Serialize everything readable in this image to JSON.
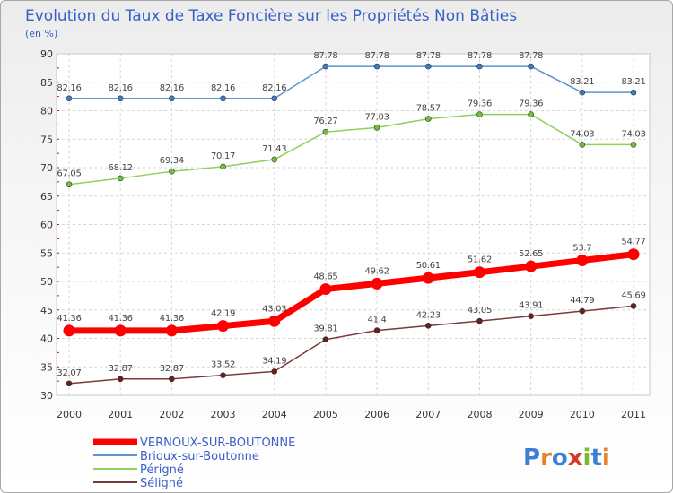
{
  "title": "Evolution du Taux de Taxe Foncière sur les Propriétés Non Bâties",
  "subtitle": "(en %)",
  "logo": {
    "letters": [
      "P",
      "r",
      "o",
      "x",
      "i",
      "t",
      "i"
    ],
    "colors": [
      "#3d7fd4",
      "#e8822a",
      "#3d7fd4",
      "#d9362b",
      "#7cb92f",
      "#3d7fd4",
      "#e8822a"
    ]
  },
  "chart_data": {
    "type": "line",
    "title": "Evolution du Taux de Taxe Foncière sur les Propriétés Non Bâties",
    "ylabel": "(en %)",
    "x": [
      "2000",
      "2001",
      "2002",
      "2003",
      "2004",
      "2005",
      "2006",
      "2007",
      "2008",
      "2009",
      "2010",
      "2011"
    ],
    "ylim": [
      30,
      90
    ],
    "yticks": [
      "30",
      "35",
      "40",
      "45",
      "50",
      "55",
      "60",
      "65",
      "70",
      "75",
      "80",
      "85",
      "90"
    ],
    "grid": true,
    "legend_position": "bottom-left",
    "series": [
      {
        "name": "VERNOUX-SUR-BOUTONNE",
        "color": "#ff0000",
        "marker_color": "#ff0000",
        "emphasis": "thick",
        "values": [
          41.36,
          41.36,
          41.36,
          42.19,
          43.03,
          48.65,
          49.62,
          50.61,
          51.62,
          52.65,
          53.7,
          54.77
        ],
        "labels": [
          "41.36",
          "41.36",
          "41.36",
          "42.19",
          "43.03",
          "48.65",
          "49.62",
          "50.61",
          "51.62",
          "52.65",
          "53.7",
          "54.77"
        ]
      },
      {
        "name": "Brioux-sur-Boutonne",
        "color": "#5b94cf",
        "marker_color": "#3d7cc4",
        "values": [
          82.16,
          82.16,
          82.16,
          82.16,
          82.16,
          87.78,
          87.78,
          87.78,
          87.78,
          87.78,
          83.21,
          83.21
        ],
        "labels": [
          "82.16",
          "82.16",
          "82.16",
          "82.16",
          "82.16",
          "87.78",
          "87.78",
          "87.78",
          "87.78",
          "87.78",
          "83.21",
          "83.21"
        ]
      },
      {
        "name": "Périgné",
        "color": "#8ed05a",
        "marker_color": "#72c03a",
        "values": [
          67.05,
          68.12,
          69.34,
          70.17,
          71.43,
          76.27,
          77.03,
          78.57,
          79.36,
          79.36,
          74.03,
          74.03
        ],
        "labels": [
          "67.05",
          "68.12",
          "69.34",
          "70.17",
          "71.43",
          "76.27",
          "77.03",
          "78.57",
          "79.36",
          "79.36",
          "74.03",
          "74.03"
        ]
      },
      {
        "name": "Séligné",
        "color": "#7a3a3a",
        "marker_color": "#6a1f1f",
        "values": [
          32.07,
          32.87,
          32.87,
          33.52,
          34.19,
          39.81,
          41.4,
          42.23,
          43.05,
          43.91,
          44.79,
          45.69
        ],
        "labels": [
          "32.07",
          "32.87",
          "32.87",
          "33.52",
          "34.19",
          "39.81",
          "41.4",
          "42.23",
          "43.05",
          "43.91",
          "44.79",
          "45.69"
        ]
      }
    ]
  }
}
